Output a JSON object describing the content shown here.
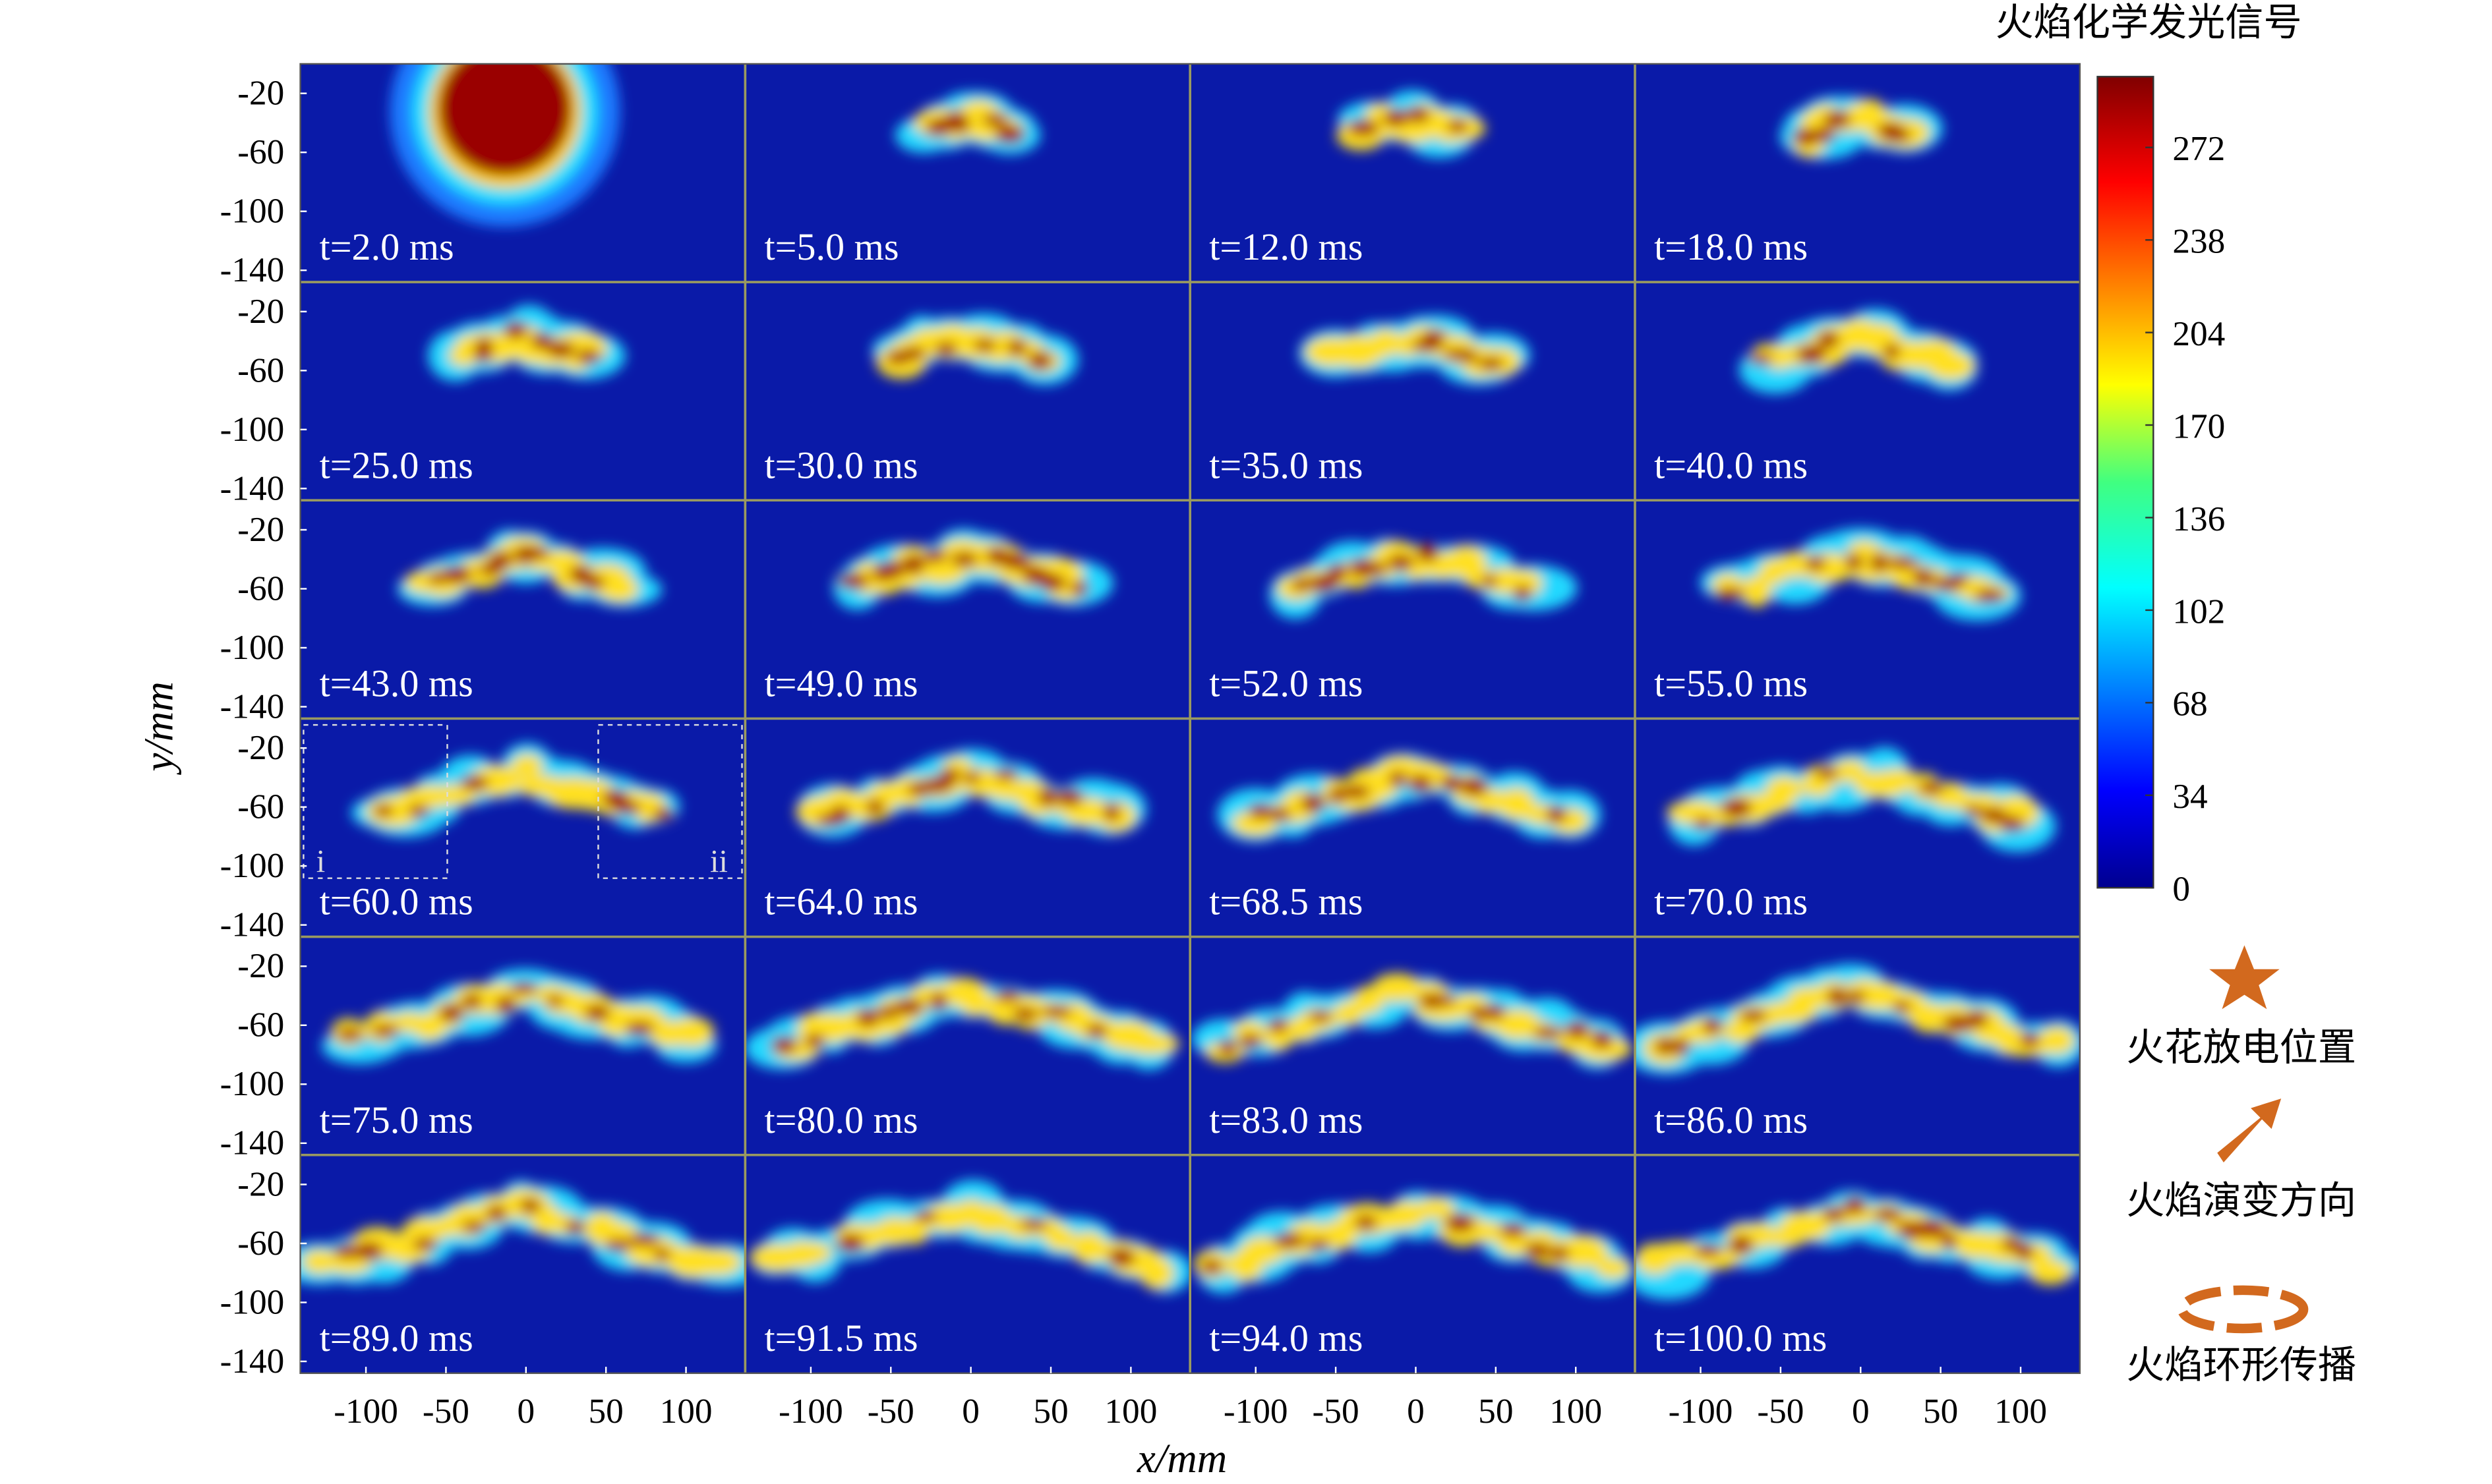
{
  "title": "火焰化学发光信号",
  "panels": [
    "t=2.0 ms",
    "t=5.0 ms",
    "t=12.0 ms",
    "t=18.0 ms",
    "t=25.0 ms",
    "t=30.0 ms",
    "t=35.0 ms",
    "t=40.0 ms",
    "t=43.0 ms",
    "t=49.0 ms",
    "t=52.0 ms",
    "t=55.0 ms",
    "t=60.0 ms",
    "t=64.0 ms",
    "t=68.5 ms",
    "t=70.0 ms",
    "t=75.0 ms",
    "t=80.0 ms",
    "t=83.0 ms",
    "t=86.0 ms",
    "t=89.0 ms",
    "t=91.5 ms",
    "t=94.0 ms",
    "t=100.0 ms"
  ],
  "x_axis": {
    "label": "x/mm",
    "lim": [
      -141,
      137
    ],
    "ticks": [
      -100,
      -50,
      0,
      50,
      100
    ]
  },
  "y_axis": {
    "label": "y/mm",
    "lim": [
      -148,
      0
    ],
    "ticks": [
      -20,
      -60,
      -100,
      -140
    ]
  },
  "colorbar": {
    "lim": [
      0,
      298
    ],
    "ticks": [
      0,
      34,
      68,
      102,
      136,
      170,
      204,
      238,
      272
    ]
  },
  "insets": [
    "i",
    "ii"
  ],
  "legend": [
    "火花放电位置",
    "火焰演变方向",
    "火焰环形传播"
  ]
}
